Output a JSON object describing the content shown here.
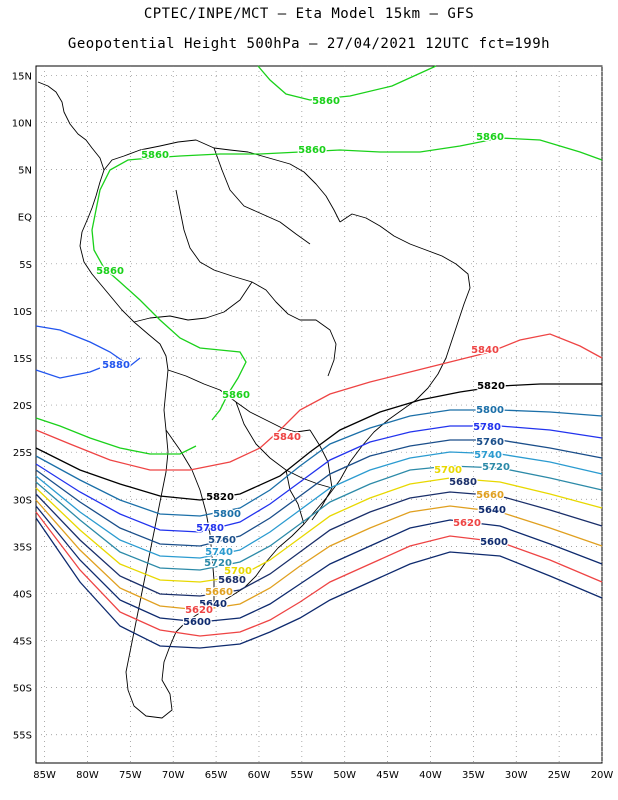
{
  "title": {
    "line1": "CPTEC/INPE/MCT –  Eta Model 15km – GFS",
    "line2": "Geopotential Height 500hPa – 27/04/2021 12UTC fct=199h"
  },
  "map": {
    "variable": "Geopotential Height 500hPa",
    "lon_range": [
      -86,
      -20
    ],
    "lat_range": [
      -58,
      16
    ],
    "lat_ticks": [
      "15N",
      "10N",
      "5N",
      "EQ",
      "5S",
      "10S",
      "15S",
      "20S",
      "25S",
      "30S",
      "35S",
      "40S",
      "45S",
      "50S",
      "55S"
    ],
    "lon_ticks": [
      "85W",
      "80W",
      "75W",
      "70W",
      "65W",
      "60W",
      "55W",
      "50W",
      "45W",
      "40W",
      "35W",
      "30W",
      "25W",
      "20W"
    ],
    "grid": "dotted",
    "contour_labels": [
      {
        "text": "5860",
        "color": "#1ad11a"
      },
      {
        "text": "5860",
        "color": "#1ad11a"
      },
      {
        "text": "5860",
        "color": "#1ad11a"
      },
      {
        "text": "5860",
        "color": "#1ad11a"
      },
      {
        "text": "5860",
        "color": "#1ad11a"
      },
      {
        "text": "5860",
        "color": "#1ad11a"
      },
      {
        "text": "5880",
        "color": "#2255ee"
      },
      {
        "text": "5840",
        "color": "#ee4444"
      },
      {
        "text": "5840",
        "color": "#ee4444"
      },
      {
        "text": "5820",
        "color": "#000000"
      },
      {
        "text": "5820",
        "color": "#000000"
      },
      {
        "text": "5800",
        "color": "#1b6fa8"
      },
      {
        "text": "5800",
        "color": "#1b6fa8"
      },
      {
        "text": "5780",
        "color": "#2233ee"
      },
      {
        "text": "5780",
        "color": "#2233ee"
      },
      {
        "text": "5760",
        "color": "#1a4e8a"
      },
      {
        "text": "5760",
        "color": "#1a4e8a"
      },
      {
        "text": "5740",
        "color": "#2b9bd0"
      },
      {
        "text": "5740",
        "color": "#2b9bd0"
      },
      {
        "text": "5720",
        "color": "#2c8aa8"
      },
      {
        "text": "5720",
        "color": "#2c8aa8"
      },
      {
        "text": "5700",
        "color": "#e8d800"
      },
      {
        "text": "5700",
        "color": "#e8d800"
      },
      {
        "text": "5680",
        "color": "#1a2f6a"
      },
      {
        "text": "5680",
        "color": "#1a2f6a"
      },
      {
        "text": "5660",
        "color": "#e0a020"
      },
      {
        "text": "5660",
        "color": "#e0a020"
      },
      {
        "text": "5640",
        "color": "#0e2a6e"
      },
      {
        "text": "5640",
        "color": "#0e2a6e"
      },
      {
        "text": "5620",
        "color": "#ee4444"
      },
      {
        "text": "5620",
        "color": "#ee4444"
      },
      {
        "text": "5600",
        "color": "#0e2a6e"
      },
      {
        "text": "5600",
        "color": "#0e2a6e"
      }
    ]
  }
}
